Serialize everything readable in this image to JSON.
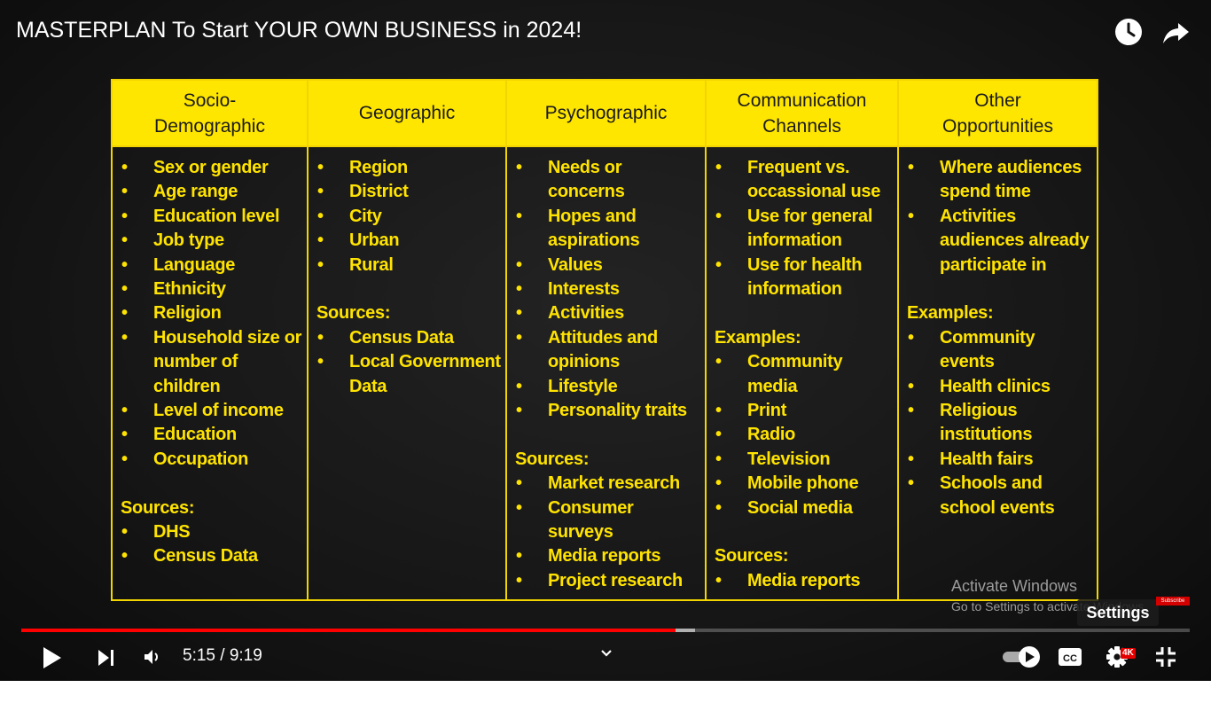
{
  "video": {
    "title": "MASTERPLAN To Start YOUR OWN BUSINESS in 2024!",
    "time_display": "5:15 / 9:19",
    "progress_played_fraction": 0.56,
    "progress_buffered_fraction": 0.577
  },
  "slide": {
    "columns": [
      {
        "header": "Socio-\nDemographic",
        "items": [
          "Sex or gender",
          "Age range",
          "Education level",
          "Job type",
          "Language",
          "Ethnicity",
          "Religion",
          "Household size or number of children",
          "Level of income",
          "Education",
          "Occupation"
        ],
        "section_label": "Sources:",
        "section_items": [
          "DHS",
          "Census Data"
        ]
      },
      {
        "header": "Geographic",
        "items": [
          "Region",
          "District",
          "City",
          "Urban",
          "Rural"
        ],
        "section_label": "Sources:",
        "section_items": [
          "Census Data",
          "Local Government Data"
        ]
      },
      {
        "header": "Psychographic",
        "items": [
          "Needs or concerns",
          "Hopes and aspirations",
          "Values",
          "Interests",
          "Activities",
          "Attitudes and opinions",
          "Lifestyle",
          "Personality traits"
        ],
        "section_label": "Sources:",
        "section_items": [
          "Market research",
          "Consumer surveys",
          "Media reports",
          "Project research"
        ]
      },
      {
        "header": "Communication\nChannels",
        "items": [
          "Frequent vs. occassional use",
          "Use for general information",
          "Use for health information"
        ],
        "section_label": "Examples:",
        "section_items": [
          "Community media",
          "Print",
          "Radio",
          "Television",
          "Mobile phone",
          "Social media"
        ],
        "section2_label": "Sources:",
        "section2_items": [
          "Media reports"
        ]
      },
      {
        "header": "Other\nOpportunities",
        "items": [
          "Where audiences spend time",
          "Activities audiences already participate in"
        ],
        "section_label": "Examples:",
        "section_items": [
          "Community events",
          "Health clinics",
          "Religious institutions",
          "Health fairs",
          "Schools and school events"
        ]
      }
    ]
  },
  "watermark": {
    "line1": "Activate Windows",
    "line2": "Go to Settings to activate Windows."
  },
  "overlay": {
    "settings_tooltip": "Settings",
    "subscribe_badge": "Subscribe",
    "quality_badge": "4K"
  },
  "icons": [
    "clock-icon",
    "share-icon",
    "play-icon",
    "next-icon",
    "volume-icon",
    "chevron-down-icon",
    "autoplay-toggle-icon",
    "cc-icon",
    "gear-icon",
    "fullscreen-exit-icon"
  ],
  "colors": {
    "header_yellow": "#ffe600",
    "text_yellow": "#ffe300",
    "progress_red": "#ff0000"
  }
}
